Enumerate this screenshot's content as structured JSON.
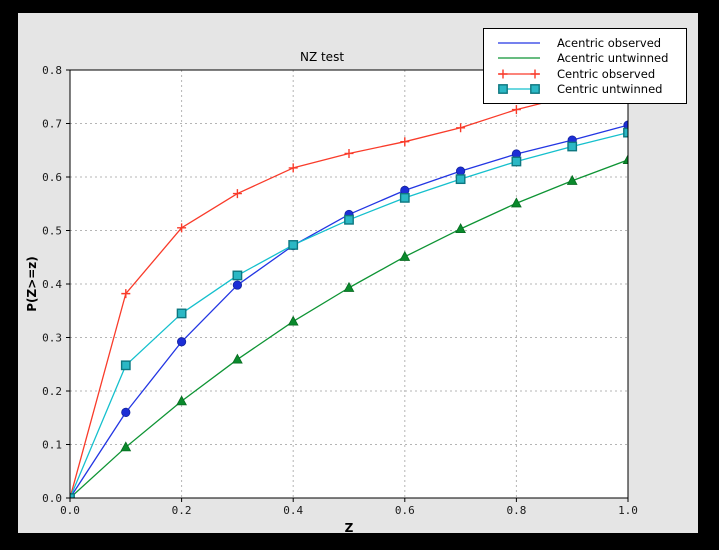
{
  "window": {
    "outer_background": "#000000",
    "figure_background": "#e5e5e5",
    "plot_background": "#ffffff",
    "grid_color": "#b5b5b5",
    "axis_color": "#000000"
  },
  "chart_data": {
    "type": "line",
    "title": "NZ test",
    "xlabel": "Z",
    "ylabel": "P(Z>=z)",
    "xlim": [
      0.0,
      1.0
    ],
    "ylim": [
      0.0,
      0.8
    ],
    "xticks": [
      "0.0",
      "0.2",
      "0.4",
      "0.6",
      "0.8",
      "1.0"
    ],
    "yticks": [
      "0.0",
      "0.1",
      "0.2",
      "0.3",
      "0.4",
      "0.5",
      "0.6",
      "0.7",
      "0.8"
    ],
    "grid": true,
    "legend_position": "upper right",
    "x": [
      0.0,
      0.1,
      0.2,
      0.3,
      0.4,
      0.5,
      0.6,
      0.7,
      0.8,
      0.9,
      1.0
    ],
    "series": [
      {
        "name": "Acentric observed",
        "line_color": "#2336e3",
        "marker": "circle",
        "marker_fill": "#1c2ed6",
        "marker_edge": "#14239e",
        "legend_markers": false,
        "values": [
          0.0,
          0.16,
          0.292,
          0.398,
          0.472,
          0.53,
          0.575,
          0.611,
          0.643,
          0.669,
          0.697
        ]
      },
      {
        "name": "Acentric untwinned",
        "line_color": "#0e9434",
        "marker": "triangle",
        "marker_fill": "#0a8a2c",
        "marker_edge": "#076b21",
        "legend_markers": false,
        "values": [
          0.0,
          0.095,
          0.181,
          0.259,
          0.33,
          0.393,
          0.451,
          0.503,
          0.551,
          0.593,
          0.632
        ]
      },
      {
        "name": "Centric observed",
        "line_color": "#f93b2a",
        "marker": "plus",
        "marker_fill": "#f93b2a",
        "marker_edge": "#f93b2a",
        "legend_markers": true,
        "values": [
          0.0,
          0.382,
          0.505,
          0.569,
          0.617,
          0.644,
          0.666,
          0.692,
          0.726,
          0.752,
          0.775
        ]
      },
      {
        "name": "Centric untwinned",
        "line_color": "#15c0cd",
        "marker": "square",
        "marker_fill": "#2bb8c5",
        "marker_edge": "#0e7780",
        "legend_markers": true,
        "values": [
          0.0,
          0.248,
          0.345,
          0.416,
          0.473,
          0.52,
          0.561,
          0.596,
          0.629,
          0.657,
          0.683
        ]
      }
    ]
  }
}
